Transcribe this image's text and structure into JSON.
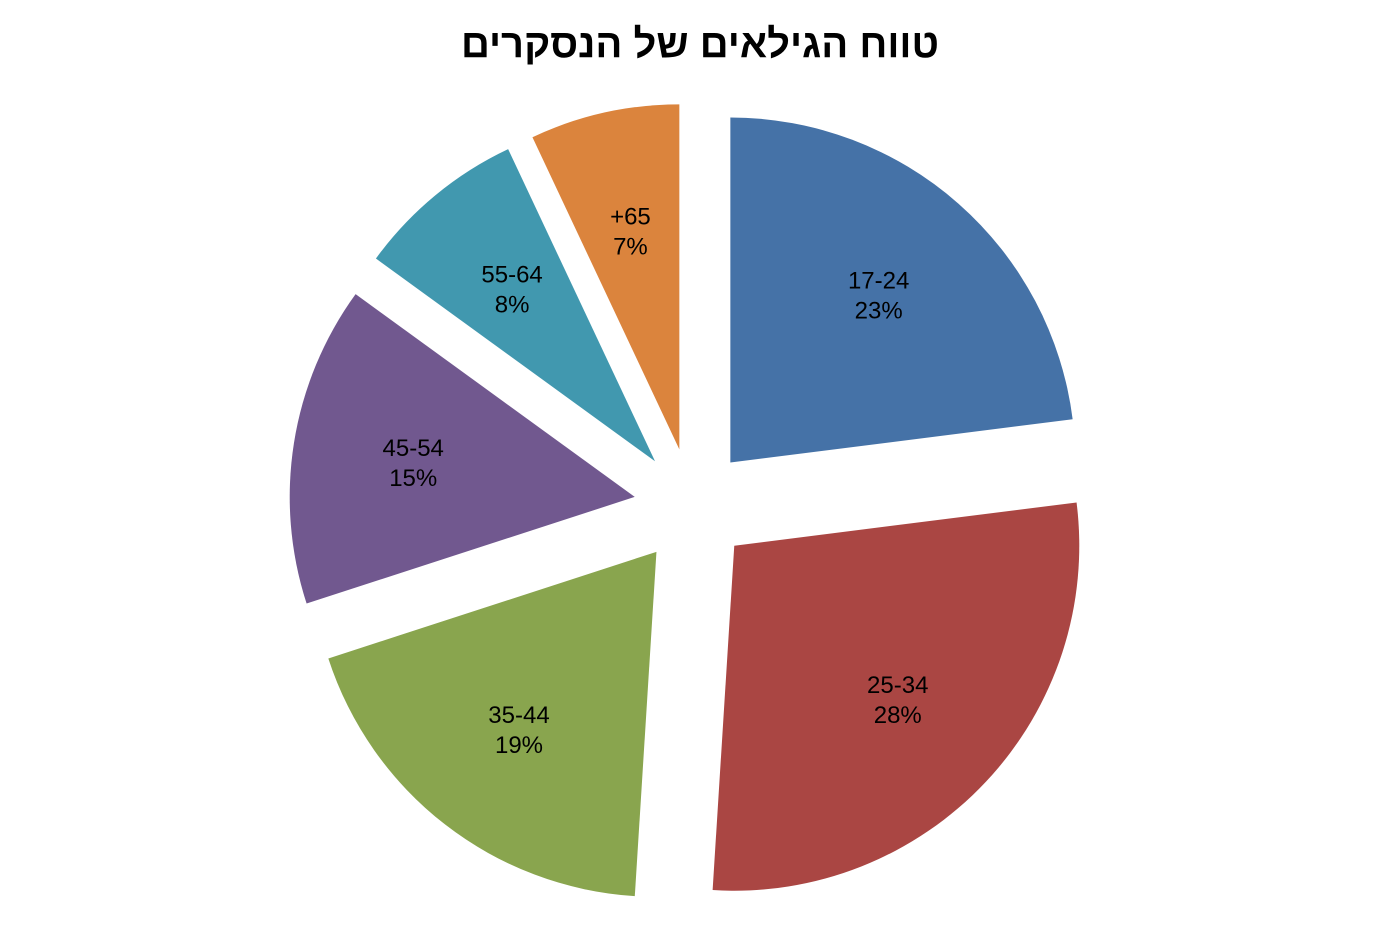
{
  "chart_data": {
    "type": "pie",
    "title": "טווח הגילאים של הנסקרים",
    "exploded": true,
    "start_angle_deg": 0,
    "direction": "clockwise",
    "slices": [
      {
        "category": "17-24",
        "value": 23,
        "percent_label": "23%",
        "color": "#4572A7"
      },
      {
        "category": "25-34",
        "value": 28,
        "percent_label": "28%",
        "color": "#AA4643"
      },
      {
        "category": "35-44",
        "value": 19,
        "percent_label": "19%",
        "color": "#89A54E"
      },
      {
        "category": "45-54",
        "value": 15,
        "percent_label": "15%",
        "color": "#71588F"
      },
      {
        "category": "55-64",
        "value": 8,
        "percent_label": "8%",
        "color": "#4198AF"
      },
      {
        "category": "+65",
        "value": 7,
        "percent_label": "7%",
        "color": "#DB843D"
      }
    ],
    "legend": "none"
  }
}
